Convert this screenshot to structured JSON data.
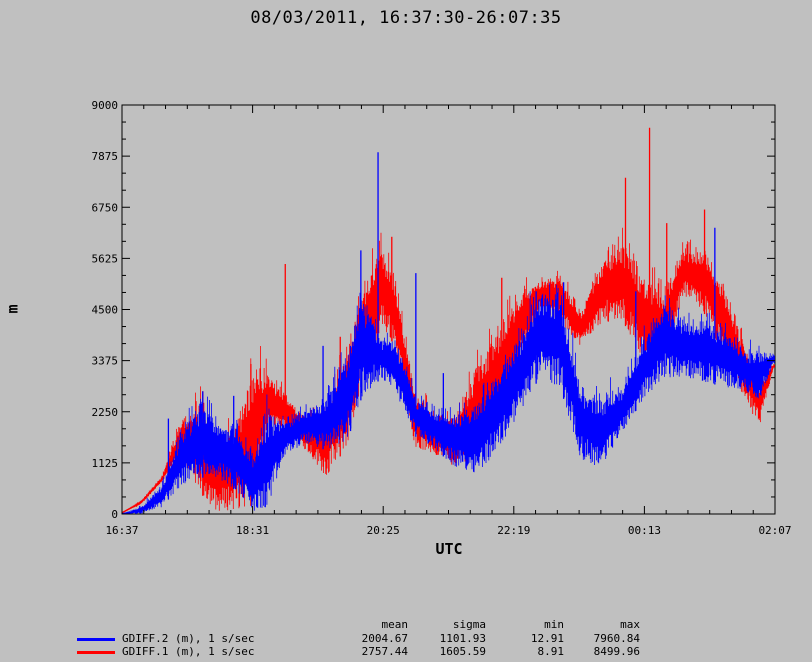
{
  "chart_data": {
    "type": "line",
    "title": "08/03/2011, 16:37:30-26:07:35",
    "xlabel": "UTC",
    "ylabel": "m",
    "x_ticks": [
      "16:37",
      "18:31",
      "20:25",
      "22:19",
      "00:13",
      "02:07"
    ],
    "y_ticks": [
      "0",
      "1125",
      "2250",
      "3375",
      "4500",
      "5625",
      "6750",
      "7875",
      "9000"
    ],
    "ylim": [
      0,
      9000
    ],
    "xlim_hours": [
      16.625,
      26.125
    ],
    "grid": false,
    "series": [
      {
        "name": "GDIFF.2 (m), 1 s/sec",
        "color": "#0000ff",
        "mean": "2004.67",
        "sigma": "1101.93",
        "min": "12.91",
        "max": "7960.84",
        "x_hours": [
          16.63,
          16.9,
          17.2,
          17.5,
          17.8,
          18.0,
          18.3,
          18.55,
          18.75,
          19.0,
          19.3,
          19.6,
          19.9,
          20.1,
          20.4,
          20.6,
          20.9,
          21.2,
          21.5,
          21.8,
          22.1,
          22.4,
          22.7,
          23.0,
          23.3,
          23.6,
          23.9,
          24.2,
          24.5,
          24.8,
          25.1,
          25.4,
          25.7,
          25.9,
          26.1
        ],
        "y_lo": [
          0,
          0,
          150,
          650,
          800,
          800,
          500,
          20,
          100,
          1300,
          1550,
          1400,
          1600,
          2500,
          3000,
          2700,
          1700,
          1400,
          1000,
          900,
          1400,
          2200,
          3000,
          2800,
          1200,
          1000,
          1800,
          2500,
          3000,
          3000,
          2900,
          2800,
          2700,
          2500,
          3300
        ],
        "y_hi": [
          10,
          150,
          600,
          1800,
          2400,
          2000,
          1800,
          1200,
          2200,
          2000,
          2300,
          2500,
          3400,
          4800,
          3800,
          3800,
          2500,
          2200,
          2200,
          2400,
          3100,
          3800,
          4800,
          4700,
          2700,
          2500,
          2700,
          3700,
          4600,
          4200,
          4200,
          4000,
          3500,
          3600,
          3500
        ],
        "spikes": [
          [
            17.3,
            2100
          ],
          [
            17.8,
            2700
          ],
          [
            18.25,
            2600
          ],
          [
            19.55,
            3700
          ],
          [
            19.95,
            3700
          ],
          [
            20.1,
            5800
          ],
          [
            20.35,
            7960
          ],
          [
            20.9,
            5300
          ],
          [
            21.3,
            3100
          ],
          [
            22.65,
            4900
          ],
          [
            23.05,
            5100
          ],
          [
            24.1,
            4900
          ],
          [
            25.25,
            6300
          ]
        ]
      },
      {
        "name": "GDIFF.1 (m), 1 s/sec",
        "color": "#ff0000",
        "mean": "2757.44",
        "sigma": "1605.59",
        "min": "8.91",
        "max": "8499.96",
        "x_hours": [
          16.63,
          16.9,
          17.2,
          17.5,
          17.8,
          18.0,
          18.3,
          18.55,
          18.75,
          19.0,
          19.3,
          19.6,
          19.9,
          20.1,
          20.4,
          20.6,
          20.9,
          21.2,
          21.5,
          21.8,
          22.1,
          22.4,
          22.7,
          23.0,
          23.3,
          23.6,
          23.9,
          24.2,
          24.5,
          24.8,
          25.1,
          25.4,
          25.7,
          25.9,
          26.1
        ],
        "y_lo": [
          30,
          200,
          700,
          1200,
          400,
          50,
          100,
          200,
          1800,
          1900,
          1400,
          800,
          1500,
          2700,
          4100,
          3700,
          1400,
          1300,
          1000,
          1400,
          2000,
          3200,
          4500,
          4200,
          3700,
          4200,
          4300,
          3300,
          3300,
          4800,
          4400,
          3300,
          2500,
          1900,
          3200
        ],
        "y_hi": [
          30,
          300,
          800,
          2100,
          2300,
          1400,
          2000,
          3200,
          3000,
          2600,
          2100,
          2300,
          3500,
          4800,
          5900,
          5000,
          2600,
          2100,
          2200,
          3200,
          4000,
          4800,
          5100,
          5200,
          4400,
          5500,
          5900,
          5200,
          4800,
          5800,
          5800,
          4900,
          3600,
          2900,
          3300
        ],
        "spikes": [
          [
            17.8,
            2700
          ],
          [
            18.5,
            3300
          ],
          [
            19.0,
            5500
          ],
          [
            19.8,
            3900
          ],
          [
            20.55,
            6100
          ],
          [
            21.2,
            1800
          ],
          [
            22.15,
            5200
          ],
          [
            22.9,
            5100
          ],
          [
            23.7,
            5800
          ],
          [
            23.95,
            7400
          ],
          [
            24.3,
            8500
          ],
          [
            24.55,
            6400
          ],
          [
            25.1,
            6700
          ]
        ]
      }
    ],
    "stats_headers": [
      "mean",
      "sigma",
      "min",
      "max"
    ]
  }
}
